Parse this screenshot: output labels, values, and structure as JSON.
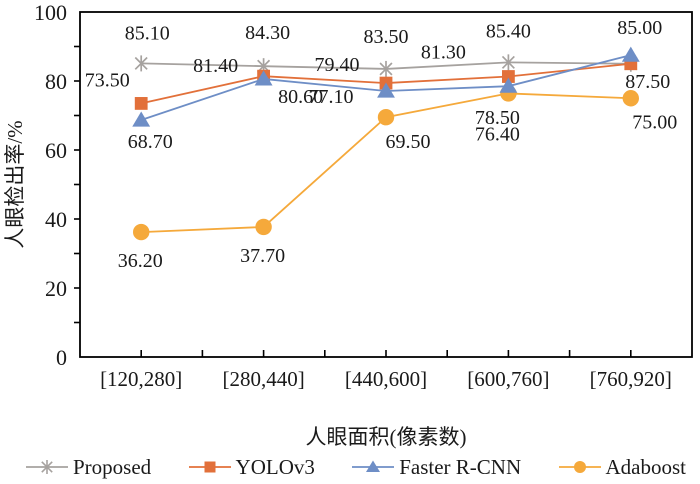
{
  "chart_data": {
    "type": "line",
    "title": "",
    "xlabel": "人眼面积(像素数)",
    "ylabel": "人眼检出率/%",
    "ylim": [
      0,
      100
    ],
    "y_ticks": [
      0,
      20,
      40,
      60,
      80,
      100
    ],
    "grid": "off",
    "legend_position": "bottom",
    "categories": [
      "[120,280]",
      "[280,440]",
      "[440,600]",
      "[600,760]",
      "[760,920]"
    ],
    "series": [
      {
        "name": "Proposed",
        "marker": "asterisk",
        "color": "#A6A29F",
        "values": [
          85.1,
          84.3,
          83.5,
          85.4,
          85.0
        ],
        "point_labels": [
          "85.10",
          "84.30",
          "83.50",
          "85.40",
          "85.00"
        ]
      },
      {
        "name": "YOLOv3",
        "marker": "square",
        "color": "#E2703A",
        "values": [
          73.5,
          81.4,
          79.4,
          81.3,
          85.0
        ],
        "point_labels": [
          "73.50",
          "81.40",
          "79.40",
          "81.30",
          ""
        ]
      },
      {
        "name": "Faster R-CNN",
        "marker": "triangle",
        "color": "#6E8EC6",
        "values": [
          68.7,
          80.6,
          77.1,
          78.5,
          87.5
        ],
        "point_labels": [
          "68.70",
          "80.60",
          "77.10",
          "78.50",
          "87.50"
        ]
      },
      {
        "name": "Adaboost",
        "marker": "circle",
        "color": "#F5A93B",
        "values": [
          36.2,
          37.7,
          69.5,
          76.4,
          75.0
        ],
        "point_labels": [
          "36.20",
          "37.70",
          "69.50",
          "76.40",
          "75.00"
        ]
      }
    ],
    "text_color": "#1a1a1a",
    "axis_color": "#000000"
  }
}
